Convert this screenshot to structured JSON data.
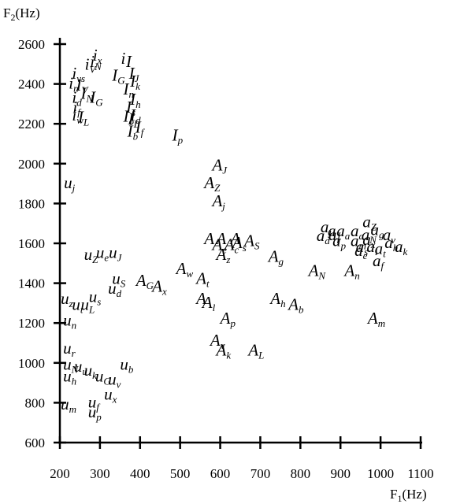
{
  "chart_data": {
    "type": "scatter",
    "title": "",
    "xlabel": "F",
    "xlabel_sub": "1",
    "xlabel_unit": "(Hz)",
    "ylabel": "F",
    "ylabel_sub": "2",
    "ylabel_unit": "(Hz)",
    "xlim": [
      200,
      1100
    ],
    "ylim": [
      600,
      2600
    ],
    "xticks": [
      200,
      300,
      400,
      500,
      600,
      700,
      800,
      900,
      1000,
      1100
    ],
    "yticks": [
      600,
      800,
      1000,
      1200,
      1400,
      1600,
      1800,
      2000,
      2200,
      2400,
      2600
    ],
    "grid": false,
    "legend": "none",
    "marker_style": "italic letter with subscript",
    "series": [
      {
        "letter": "i",
        "points": [
          {
            "sub": "x",
            "x": 292,
            "y": 2540
          },
          {
            "sub": "N",
            "x": 285,
            "y": 2510
          },
          {
            "sub": "V",
            "x": 272,
            "y": 2495
          },
          {
            "sub": "vs",
            "x": 240,
            "y": 2450
          },
          {
            "sub": "n",
            "x": 232,
            "y": 2400
          },
          {
            "sub": "",
            "x": 362,
            "y": 2525
          },
          {
            "sub": "d",
            "x": 240,
            "y": 2330
          },
          {
            "sub": "f",
            "x": 242,
            "y": 2280
          },
          {
            "sub": "w",
            "x": 240,
            "y": 2240
          }
        ]
      },
      {
        "letter": "I",
        "points": [
          {
            "sub": "",
            "x": 375,
            "y": 2510
          },
          {
            "sub": "G",
            "x": 340,
            "y": 2440
          },
          {
            "sub": "J",
            "x": 382,
            "y": 2450
          },
          {
            "sub": "k",
            "x": 385,
            "y": 2410
          },
          {
            "sub": "V",
            "x": 250,
            "y": 2390
          },
          {
            "sub": "N",
            "x": 262,
            "y": 2350
          },
          {
            "sub": "G",
            "x": 285,
            "y": 2330
          },
          {
            "sub": "n",
            "x": 368,
            "y": 2370
          },
          {
            "sub": "h",
            "x": 385,
            "y": 2320
          },
          {
            "sub": "s",
            "x": 375,
            "y": 2280
          },
          {
            "sub": "o",
            "x": 368,
            "y": 2235
          },
          {
            "sub": "L",
            "x": 380,
            "y": 2220
          },
          {
            "sub": "b",
            "x": 378,
            "y": 2160
          },
          {
            "sub": "f",
            "x": 398,
            "y": 2180
          },
          {
            "sub": "d",
            "x": 385,
            "y": 2240
          },
          {
            "sub": "L",
            "x": 255,
            "y": 2230
          },
          {
            "sub": "p",
            "x": 490,
            "y": 2140
          }
        ]
      },
      {
        "letter": "u",
        "points": [
          {
            "sub": "j",
            "x": 220,
            "y": 1900
          },
          {
            "sub": "Z",
            "x": 270,
            "y": 1540
          },
          {
            "sub": "e",
            "x": 300,
            "y": 1550
          },
          {
            "sub": "J",
            "x": 332,
            "y": 1550
          },
          {
            "sub": "S",
            "x": 340,
            "y": 1420
          },
          {
            "sub": "d",
            "x": 330,
            "y": 1370
          },
          {
            "sub": "s",
            "x": 282,
            "y": 1330
          },
          {
            "sub": "z",
            "x": 212,
            "y": 1320
          },
          {
            "sub": "t",
            "x": 240,
            "y": 1290
          },
          {
            "sub": "L",
            "x": 262,
            "y": 1290
          },
          {
            "sub": "n",
            "x": 218,
            "y": 1210
          },
          {
            "sub": "r",
            "x": 218,
            "y": 1070
          },
          {
            "sub": "N",
            "x": 218,
            "y": 990
          },
          {
            "sub": "u",
            "x": 245,
            "y": 980
          },
          {
            "sub": "b",
            "x": 360,
            "y": 990
          },
          {
            "sub": "h",
            "x": 218,
            "y": 930
          },
          {
            "sub": "k",
            "x": 270,
            "y": 960
          },
          {
            "sub": "G",
            "x": 298,
            "y": 930
          },
          {
            "sub": "v",
            "x": 330,
            "y": 915
          },
          {
            "sub": "x",
            "x": 320,
            "y": 840
          },
          {
            "sub": "f",
            "x": 280,
            "y": 800
          },
          {
            "sub": "m",
            "x": 212,
            "y": 790
          },
          {
            "sub": "p",
            "x": 280,
            "y": 750
          }
        ]
      },
      {
        "letter": "a",
        "points": [
          {
            "sub": "Z",
            "x": 965,
            "y": 1705
          },
          {
            "sub": "j",
            "x": 860,
            "y": 1680
          },
          {
            "sub": "J",
            "x": 878,
            "y": 1660
          },
          {
            "sub": "a",
            "x": 900,
            "y": 1660
          },
          {
            "sub": "a",
            "x": 935,
            "y": 1660
          },
          {
            "sub": "g",
            "x": 985,
            "y": 1665
          },
          {
            "sub": "v",
            "x": 1015,
            "y": 1640
          },
          {
            "sub": "d",
            "x": 850,
            "y": 1635
          },
          {
            "sub": "r",
            "x": 880,
            "y": 1640
          },
          {
            "sub": "N",
            "x": 962,
            "y": 1640
          },
          {
            "sub": "p",
            "x": 890,
            "y": 1610
          },
          {
            "sub": "m",
            "x": 935,
            "y": 1610
          },
          {
            "sub": "x",
            "x": 965,
            "y": 1615
          },
          {
            "sub": "h",
            "x": 1020,
            "y": 1600
          },
          {
            "sub": "s",
            "x": 948,
            "y": 1580
          },
          {
            "sub": "i",
            "x": 975,
            "y": 1580
          },
          {
            "sub": "k",
            "x": 1045,
            "y": 1580
          },
          {
            "sub": "t",
            "x": 995,
            "y": 1570
          },
          {
            "sub": "e",
            "x": 945,
            "y": 1560
          },
          {
            "sub": "f",
            "x": 990,
            "y": 1510
          }
        ]
      },
      {
        "letter": "A",
        "points": [
          {
            "sub": "J",
            "x": 590,
            "y": 1990
          },
          {
            "sub": "Z",
            "x": 570,
            "y": 1900
          },
          {
            "sub": "j",
            "x": 590,
            "y": 1810
          },
          {
            "sub": "",
            "x": 570,
            "y": 1620
          },
          {
            "sub": "",
            "x": 600,
            "y": 1620
          },
          {
            "sub": "",
            "x": 635,
            "y": 1620
          },
          {
            "sub": "s",
            "x": 640,
            "y": 1600
          },
          {
            "sub": "S",
            "x": 670,
            "y": 1610
          },
          {
            "sub": "e",
            "x": 590,
            "y": 1590
          },
          {
            "sub": "c",
            "x": 620,
            "y": 1590
          },
          {
            "sub": "z",
            "x": 600,
            "y": 1540
          },
          {
            "sub": "g",
            "x": 730,
            "y": 1530
          },
          {
            "sub": "N",
            "x": 830,
            "y": 1460
          },
          {
            "sub": "n",
            "x": 920,
            "y": 1460
          },
          {
            "sub": "w",
            "x": 500,
            "y": 1470
          },
          {
            "sub": "t",
            "x": 550,
            "y": 1420
          },
          {
            "sub": "G",
            "x": 400,
            "y": 1410
          },
          {
            "sub": "x",
            "x": 440,
            "y": 1380
          },
          {
            "sub": "",
            "x": 550,
            "y": 1320
          },
          {
            "sub": "l",
            "x": 565,
            "y": 1300
          },
          {
            "sub": "h",
            "x": 735,
            "y": 1320
          },
          {
            "sub": "b",
            "x": 780,
            "y": 1290
          },
          {
            "sub": "p",
            "x": 610,
            "y": 1220
          },
          {
            "sub": "m",
            "x": 978,
            "y": 1220
          },
          {
            "sub": "v",
            "x": 585,
            "y": 1110
          },
          {
            "sub": "k",
            "x": 600,
            "y": 1060
          },
          {
            "sub": "L",
            "x": 680,
            "y": 1060
          }
        ]
      }
    ]
  }
}
